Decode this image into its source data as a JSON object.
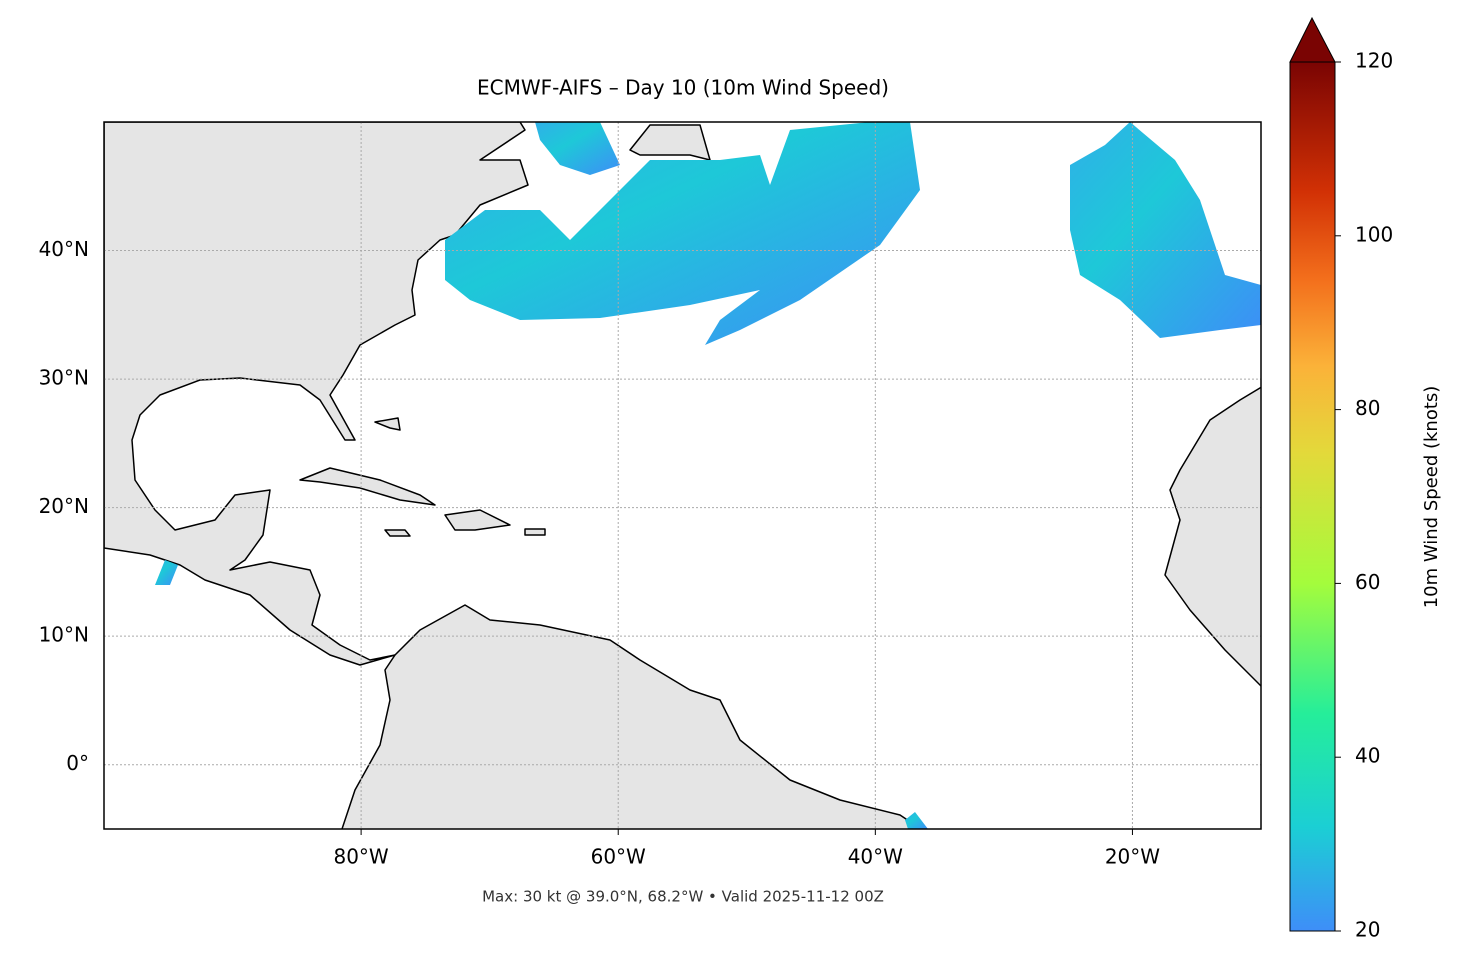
{
  "map": {
    "title": "ECMWF-AIFS – Day 10 (10m Wind Speed)",
    "footer": "Max: 30 kt @ 39.0°N, 68.2°W • Valid 2025-11-12 00Z",
    "xlim": [
      -100,
      -10
    ],
    "ylim": [
      -5,
      50
    ],
    "xticks": [
      {
        "value": -80,
        "label": "80°W"
      },
      {
        "value": -60,
        "label": "60°W"
      },
      {
        "value": -40,
        "label": "40°W"
      },
      {
        "value": -20,
        "label": "20°W"
      }
    ],
    "yticks": [
      {
        "value": 0,
        "label": "0°"
      },
      {
        "value": 10,
        "label": "10°N"
      },
      {
        "value": 20,
        "label": "20°N"
      },
      {
        "value": 30,
        "label": "30°N"
      },
      {
        "value": 40,
        "label": "40°N"
      }
    ],
    "grid": true,
    "colorbar": {
      "label": "10m Wind Speed (knots)",
      "lim": [
        20,
        120
      ],
      "ticks": [
        20,
        40,
        60,
        80,
        100,
        120
      ]
    }
  }
}
